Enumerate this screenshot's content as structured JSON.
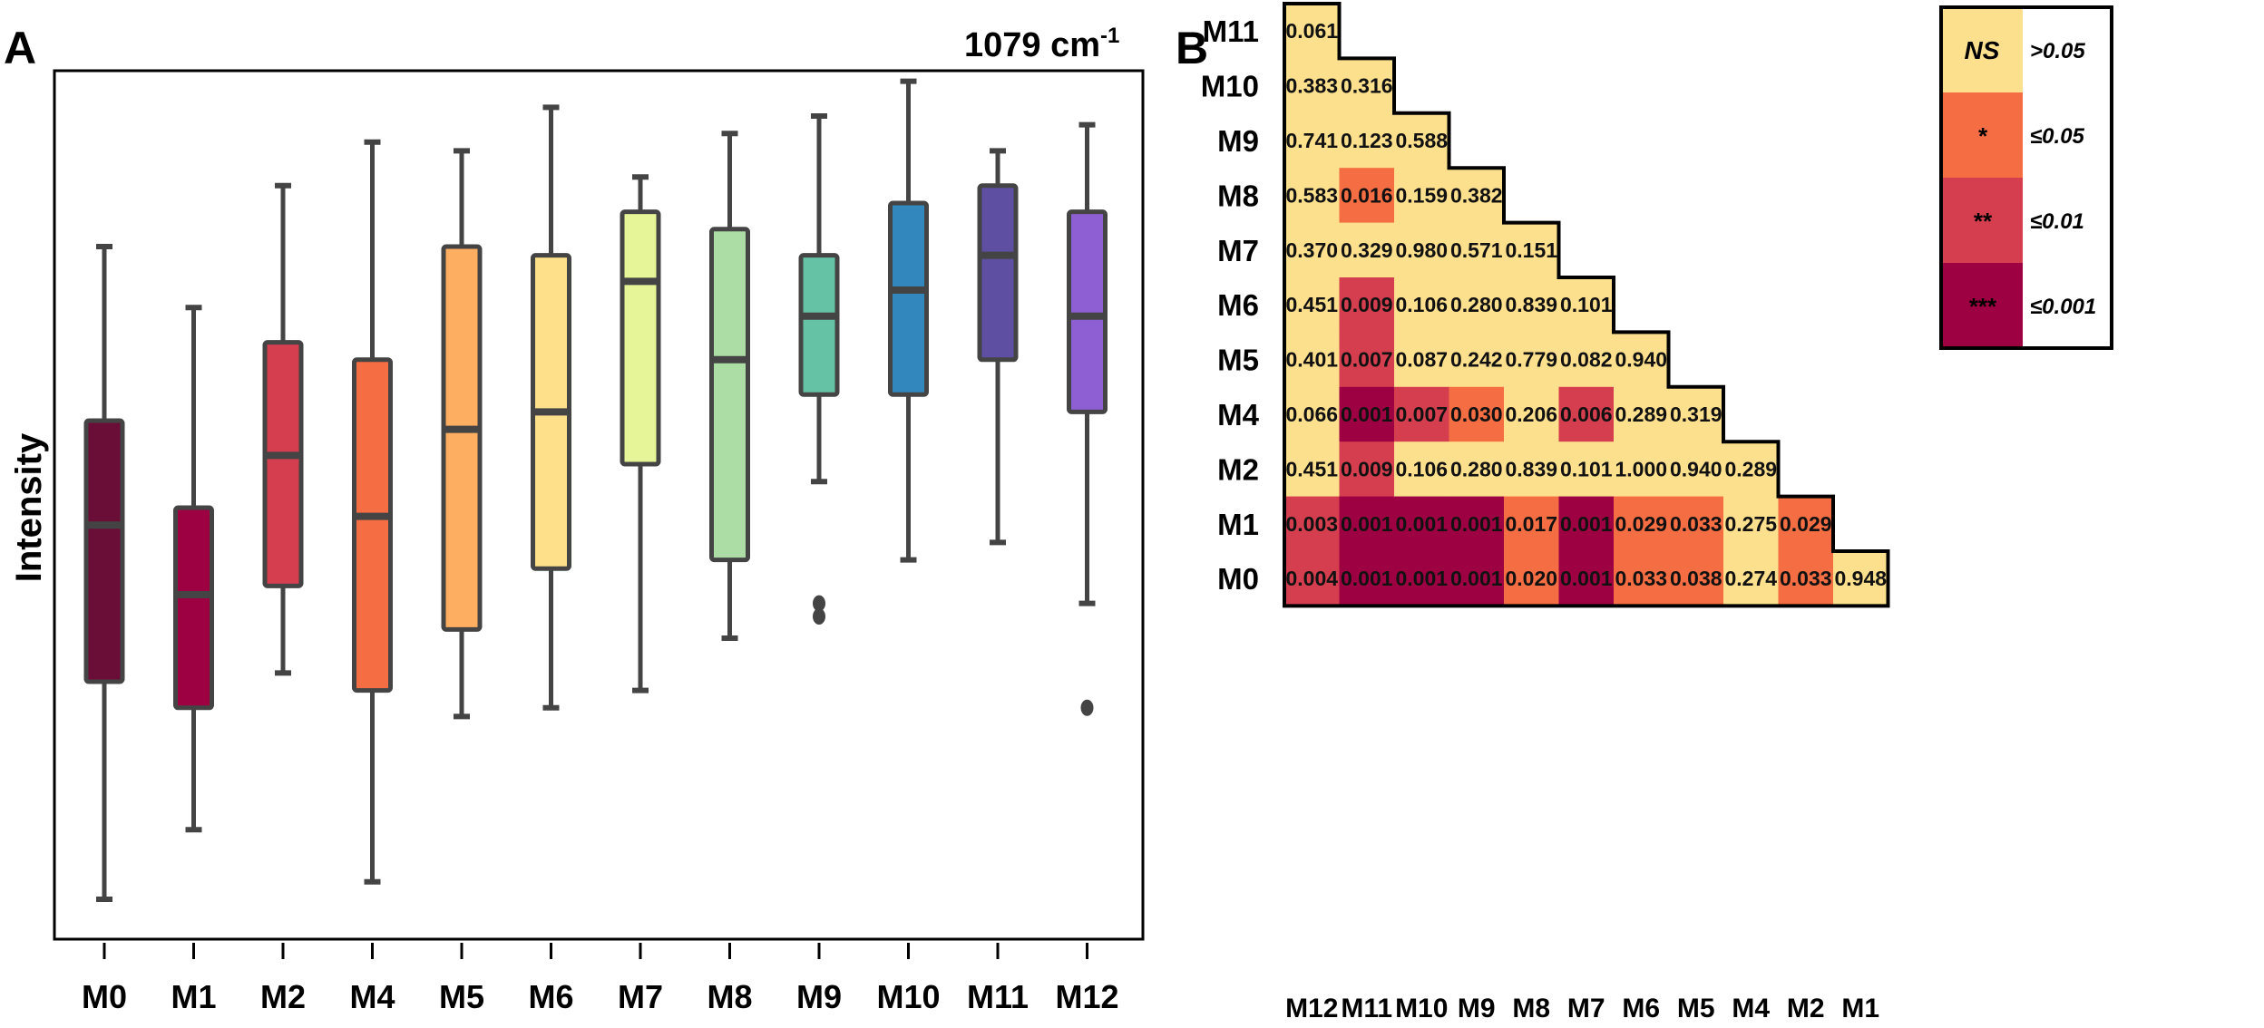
{
  "panel_a": {
    "label": "A",
    "title": "1079 cm",
    "title_sup": "-1",
    "ylabel": "Intensity"
  },
  "panel_b": {
    "label": "B"
  },
  "legend": {
    "entries": [
      {
        "symbol": "NS",
        "label": ">0.05",
        "color": "#FDE08E"
      },
      {
        "symbol": "*",
        "label": "≤0.05",
        "color": "#F46D43"
      },
      {
        "symbol": "**",
        "label": "≤0.01",
        "color": "#D53E4F"
      },
      {
        "symbol": "***",
        "label": "≤0.001",
        "color": "#9E0142"
      }
    ]
  },
  "chart_data": [
    {
      "type": "box",
      "title": "1079 cm-1",
      "xlabel": "",
      "ylabel": "Intensity",
      "ylim": [
        0,
        100
      ],
      "yticks_visible": false,
      "categories": [
        "M0",
        "M1",
        "M2",
        "M4",
        "M5",
        "M6",
        "M7",
        "M8",
        "M9",
        "M10",
        "M11",
        "M12"
      ],
      "colors": [
        "#6B0E37",
        "#9E0142",
        "#D53E4F",
        "#F46D43",
        "#FDAE61",
        "#FEE08B",
        "#E6F598",
        "#ABDDA4",
        "#66C2A5",
        "#3288BD",
        "#5E4FA2",
        "#8D5FD3"
      ],
      "boxes": [
        {
          "min": 5,
          "q1": 30,
          "median": 48,
          "q3": 60,
          "max": 80,
          "outliers": []
        },
        {
          "min": 13,
          "q1": 27,
          "median": 40,
          "q3": 50,
          "max": 73,
          "outliers": []
        },
        {
          "min": 31,
          "q1": 41,
          "median": 56,
          "q3": 69,
          "max": 87,
          "outliers": []
        },
        {
          "min": 7,
          "q1": 29,
          "median": 49,
          "q3": 67,
          "max": 92,
          "outliers": []
        },
        {
          "min": 26,
          "q1": 36,
          "median": 59,
          "q3": 80,
          "max": 91,
          "outliers": []
        },
        {
          "min": 27,
          "q1": 43,
          "median": 61,
          "q3": 79,
          "max": 96,
          "outliers": []
        },
        {
          "min": 29,
          "q1": 55,
          "median": 76,
          "q3": 84,
          "max": 88,
          "outliers": []
        },
        {
          "min": 35,
          "q1": 44,
          "median": 67,
          "q3": 82,
          "max": 93,
          "outliers": []
        },
        {
          "min": 53,
          "q1": 63,
          "median": 72,
          "q3": 79,
          "max": 95,
          "outliers": [
            39,
            37.5
          ]
        },
        {
          "min": 44,
          "q1": 63,
          "median": 75,
          "q3": 85,
          "max": 99,
          "outliers": []
        },
        {
          "min": 46,
          "q1": 67,
          "median": 79,
          "q3": 87,
          "max": 91,
          "outliers": []
        },
        {
          "min": 39,
          "q1": 61,
          "median": 72,
          "q3": 84,
          "max": 94,
          "outliers": [
            27
          ]
        }
      ]
    },
    {
      "type": "heatmap",
      "title": "",
      "rows": [
        "M11",
        "M10",
        "M9",
        "M8",
        "M7",
        "M6",
        "M5",
        "M4",
        "M2",
        "M1",
        "M0"
      ],
      "columns": [
        "M12",
        "M11",
        "M10",
        "M9",
        "M8",
        "M7",
        "M6",
        "M5",
        "M4",
        "M2",
        "M1"
      ],
      "values": [
        [
          "0.061"
        ],
        [
          "0.383",
          "0.316"
        ],
        [
          "0.741",
          "0.123",
          "0.588"
        ],
        [
          "0.583",
          "0.016",
          "0.159",
          "0.382"
        ],
        [
          "0.370",
          "0.329",
          "0.980",
          "0.571",
          "0.151"
        ],
        [
          "0.451",
          "0.009",
          "0.106",
          "0.280",
          "0.839",
          "0.101"
        ],
        [
          "0.401",
          "0.007",
          "0.087",
          "0.242",
          "0.779",
          "0.082",
          "0.940"
        ],
        [
          "0.066",
          "0.001",
          "0.007",
          "0.030",
          "0.206",
          "0.006",
          "0.289",
          "0.319"
        ],
        [
          "0.451",
          "0.009",
          "0.106",
          "0.280",
          "0.839",
          "0.101",
          "1.000",
          "0.940",
          "0.289"
        ],
        [
          "0.003",
          "0.001",
          "0.001",
          "0.001",
          "0.017",
          "0.001",
          "0.029",
          "0.033",
          "0.275",
          "0.029"
        ],
        [
          "0.004",
          "0.001",
          "0.001",
          "0.001",
          "0.020",
          "0.001",
          "0.033",
          "0.038",
          "0.274",
          "0.033",
          "0.948"
        ]
      ]
    }
  ]
}
